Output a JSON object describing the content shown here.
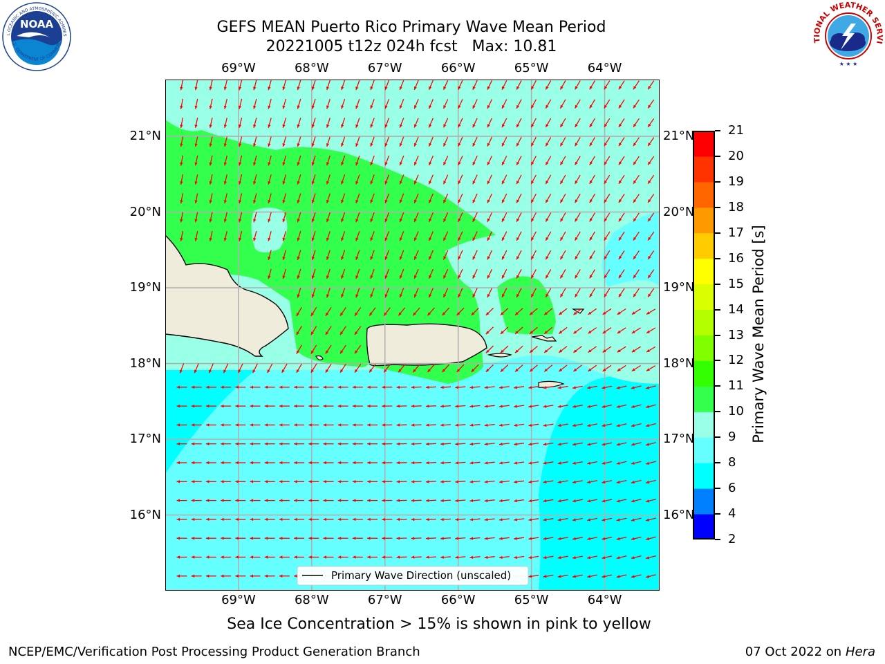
{
  "title": {
    "line1": "GEFS MEAN Puerto Rico Primary Wave Mean Period",
    "line2": "20221005 t12z 024h fcst   Max: 10.81"
  },
  "map": {
    "lon_labels": [
      "69°W",
      "68°W",
      "67°W",
      "66°W",
      "65°W",
      "64°W"
    ],
    "lat_labels": [
      "21°N",
      "20°N",
      "19°N",
      "18°N",
      "17°N",
      "16°N"
    ],
    "lon_range": [
      -70.0,
      -63.25
    ],
    "lat_range": [
      15.0,
      21.75
    ],
    "legend_label": "Primary Wave Direction (unscaled)",
    "land_color": "#efecdc",
    "arrow_color": "#ff0000"
  },
  "colorbar": {
    "label": "Primary Wave Mean Period [s]",
    "ticks": [
      "21",
      "20",
      "19",
      "18",
      "17",
      "16",
      "15",
      "14",
      "13",
      "12",
      "11",
      "10",
      "9",
      "8",
      "6",
      "4",
      "2"
    ],
    "colors": [
      "#0000ff",
      "#0080ff",
      "#00ffff",
      "#66ffff",
      "#99ffe6",
      "#33ff4d",
      "#33ff00",
      "#80ff00",
      "#b3ff00",
      "#d9ff00",
      "#ffff00",
      "#ffcc00",
      "#ff9900",
      "#ff6600",
      "#ff3300",
      "#ff0000"
    ]
  },
  "subtitle": "Sea Ice Concentration > 15% is shown in pink to yellow",
  "footer": {
    "left": "NCEP/EMC/Verification Post Processing Product Generation Branch",
    "right_prefix": "07 Oct 2022 on ",
    "right_host": "Hera"
  },
  "logos": {
    "noaa": "NOAA",
    "noaa_ring": "NATIONAL OCEANIC AND ATMOSPHERIC ADMINISTRATION",
    "noaa_ring_bottom": "U.S. DEPARTMENT OF COMMERCE",
    "nws_ring": "NATIONAL WEATHER SERVICE"
  }
}
